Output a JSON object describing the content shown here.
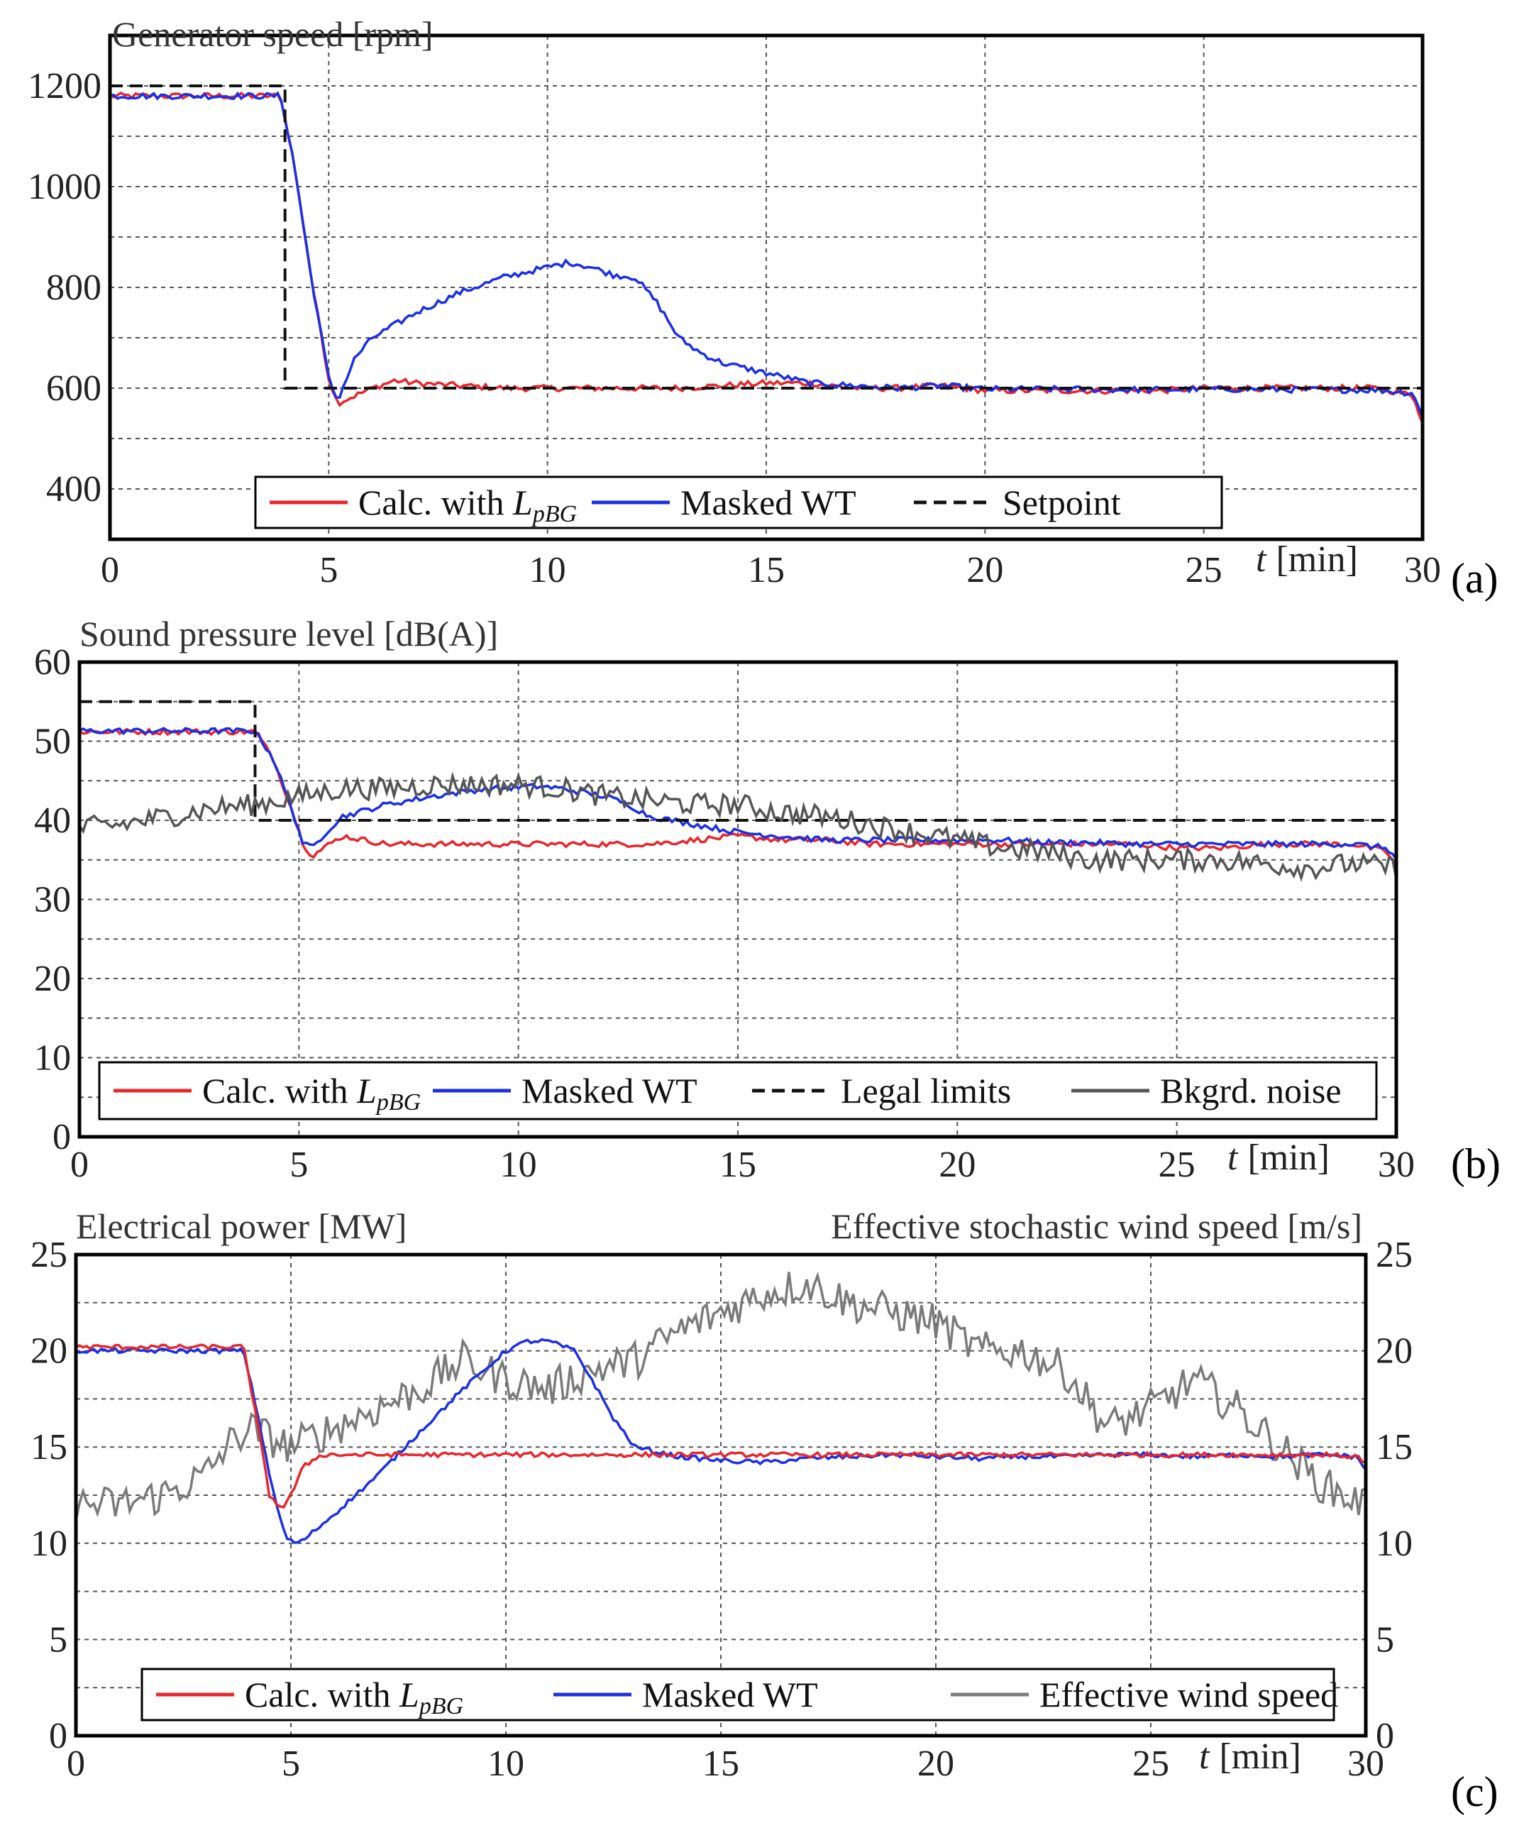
{
  "chart_data": [
    {
      "type": "line",
      "panel_label": "(a)",
      "title": "Generator speed [rpm]",
      "xlabel_var": "t",
      "xlabel_unit": "[min]",
      "xlim": [
        0,
        30
      ],
      "ylim": [
        300,
        1300
      ],
      "xticks": [
        "0",
        "5",
        "10",
        "15",
        "20",
        "25",
        "30"
      ],
      "yticks": [
        "400",
        "600",
        "800",
        "1000",
        "1200"
      ],
      "grid": true,
      "legend_position": "bottom",
      "colors": {
        "red": "#e8262b",
        "blue": "#1a2fe6",
        "black": "#111111",
        "gray": "#7a7a7a"
      },
      "series": [
        {
          "name": "Calc. with L_pBG",
          "legend_text": "Calc. with ",
          "legend_italic": "L",
          "legend_sub": "pBG",
          "color": "#e8262b",
          "style": "solid",
          "x": [
            0,
            1,
            2,
            3,
            3.9,
            4.2,
            4.6,
            5.0,
            5.2,
            5.6,
            6,
            6.5,
            7,
            8,
            9,
            10,
            11,
            12,
            13,
            14,
            15,
            16,
            17,
            18,
            19,
            20,
            21,
            22,
            23,
            24,
            25,
            26,
            27,
            28,
            29,
            29.8,
            30
          ],
          "y": [
            1180,
            1180,
            1180,
            1180,
            1180,
            1050,
            820,
            620,
            570,
            585,
            600,
            615,
            610,
            605,
            600,
            600,
            600,
            600,
            600,
            605,
            610,
            610,
            600,
            600,
            605,
            595,
            595,
            595,
            595,
            595,
            600,
            600,
            600,
            600,
            600,
            585,
            530
          ]
        },
        {
          "name": "Masked WT",
          "legend_text": "Masked WT",
          "color": "#1a2fe6",
          "style": "solid",
          "x": [
            0,
            1,
            2,
            3,
            3.9,
            4.2,
            4.6,
            5.0,
            5.2,
            5.6,
            6,
            7,
            8,
            9,
            10,
            10.5,
            11,
            11.5,
            12,
            12.5,
            13,
            13.5,
            14,
            14.5,
            15,
            16,
            17,
            18,
            19,
            20,
            21,
            22,
            23,
            24,
            25,
            26,
            27,
            28,
            29,
            29.8,
            30
          ],
          "y": [
            1180,
            1180,
            1180,
            1180,
            1180,
            1050,
            820,
            620,
            575,
            660,
            700,
            750,
            790,
            820,
            840,
            850,
            840,
            825,
            820,
            770,
            700,
            670,
            650,
            640,
            630,
            610,
            605,
            600,
            605,
            598,
            598,
            598,
            597,
            597,
            598,
            598,
            597,
            597,
            596,
            590,
            540
          ]
        },
        {
          "name": "Setpoint",
          "legend_text": "Setpoint",
          "color": "#111111",
          "style": "dashed",
          "x": [
            0,
            4,
            4,
            30
          ],
          "y": [
            1200,
            1200,
            600,
            600
          ]
        }
      ]
    },
    {
      "type": "line",
      "panel_label": "(b)",
      "title": "Sound pressure level [dB(A)]",
      "xlabel_var": "t",
      "xlabel_unit": "[min]",
      "xlim": [
        0,
        30
      ],
      "ylim": [
        0,
        60
      ],
      "xticks": [
        "0",
        "5",
        "10",
        "15",
        "20",
        "25",
        "30"
      ],
      "yticks": [
        "0",
        "10",
        "20",
        "30",
        "40",
        "50",
        "60"
      ],
      "grid": true,
      "legend_position": "bottom",
      "series": [
        {
          "name": "Calc. with L_pBG",
          "legend_text": "Calc. with ",
          "legend_italic": "L",
          "legend_sub": "pBG",
          "color": "#e8262b",
          "style": "solid",
          "x": [
            0,
            1,
            2,
            3,
            4.0,
            4.4,
            4.8,
            5.1,
            5.3,
            5.7,
            6,
            7,
            8,
            9,
            10,
            11,
            12,
            13,
            14,
            15,
            16,
            17,
            18,
            19,
            20,
            21,
            22,
            23,
            24,
            25,
            26,
            27,
            28,
            29,
            29.8,
            30
          ],
          "y": [
            51.2,
            51.2,
            51.2,
            51.2,
            51.2,
            48,
            42,
            37,
            35.5,
            37,
            38,
            37,
            37,
            37,
            37,
            37,
            37,
            37,
            37.5,
            38,
            37.5,
            37.5,
            37,
            37,
            37,
            37,
            37,
            37,
            37,
            36.5,
            36.5,
            37,
            37,
            37,
            36,
            34
          ]
        },
        {
          "name": "Masked WT",
          "legend_text": "Masked WT",
          "color": "#1a2fe6",
          "style": "solid",
          "x": [
            0,
            1,
            2,
            3,
            4.0,
            4.4,
            4.8,
            5.1,
            5.3,
            5.7,
            6,
            7,
            8,
            9,
            10,
            10.5,
            11,
            11.5,
            12,
            12.5,
            13,
            14,
            15,
            16,
            17,
            18,
            19,
            20,
            21,
            22,
            23,
            24,
            25,
            26,
            27,
            28,
            29,
            29.8,
            30
          ],
          "y": [
            51.3,
            51.3,
            51.3,
            51.3,
            51.3,
            48,
            42,
            37,
            36.5,
            39,
            40.5,
            42,
            43,
            43.8,
            44.2,
            44.3,
            44,
            43.5,
            43,
            42,
            40.5,
            39.5,
            38.5,
            38,
            37.5,
            37.5,
            37.5,
            37.5,
            37.5,
            37.2,
            37.2,
            37,
            37,
            37,
            37,
            37,
            37,
            36.5,
            35
          ]
        },
        {
          "name": "Legal limits",
          "legend_text": "Legal limits",
          "color": "#111111",
          "style": "dashed",
          "x": [
            0,
            4,
            4,
            30
          ],
          "y": [
            55,
            55,
            40,
            40
          ]
        },
        {
          "name": "Bkgrd. noise",
          "legend_text": "Bkgrd. noise",
          "color": "#555555",
          "style": "solid",
          "noise": 1.4,
          "x": [
            0,
            1,
            2,
            3,
            4,
            5,
            6,
            7,
            8,
            9,
            10,
            11,
            12,
            13,
            14,
            15,
            16,
            17,
            18,
            19,
            20,
            21,
            22,
            23,
            24,
            25,
            26,
            27,
            28,
            29,
            30
          ],
          "y": [
            39,
            39.5,
            40.5,
            41.5,
            42,
            43,
            44,
            44,
            44.5,
            44.5,
            44.5,
            44,
            43,
            42.5,
            42,
            42,
            41,
            40.5,
            39.5,
            38.5,
            37.5,
            36.5,
            36,
            35,
            35,
            35,
            35,
            34.5,
            34,
            34.5,
            34
          ]
        }
      ]
    },
    {
      "type": "line",
      "panel_label": "(c)",
      "title_left": "Electrical power [MW]",
      "title_right": "Effective stochastic wind speed [m/s]",
      "xlabel_var": "t",
      "xlabel_unit": "[min]",
      "xlim": [
        0,
        30
      ],
      "ylim": [
        0,
        25
      ],
      "xticks": [
        "0",
        "5",
        "10",
        "15",
        "20",
        "25",
        "30"
      ],
      "yticks": [
        "0",
        "5",
        "10",
        "15",
        "20",
        "25"
      ],
      "yticks_right": [
        "0",
        "5",
        "10",
        "15",
        "20",
        "25"
      ],
      "grid": true,
      "legend_position": "bottom",
      "series": [
        {
          "name": "Effective wind speed",
          "legend_text": "Effective wind speed",
          "color": "#7a7a7a",
          "style": "solid",
          "noise": 1.0,
          "x": [
            0,
            1,
            2,
            3,
            3.5,
            4,
            4.5,
            5,
            6,
            7,
            8,
            9,
            10,
            11,
            12,
            13,
            14,
            15,
            16,
            17,
            18,
            19,
            20,
            21,
            22,
            23,
            24,
            25,
            26,
            27,
            28,
            29,
            30
          ],
          "y": [
            12,
            12,
            12.5,
            13.5,
            15,
            16,
            15.5,
            15,
            16,
            17,
            18,
            19.5,
            18.5,
            18,
            19,
            19.5,
            21,
            22,
            23,
            23.5,
            22.5,
            22,
            21.5,
            20,
            20,
            19,
            16,
            17,
            18.5,
            17,
            15,
            13,
            12
          ]
        },
        {
          "name": "Masked WT",
          "legend_text": "Masked WT",
          "color": "#1a2fe6",
          "style": "solid",
          "noise": 0.12,
          "x": [
            0,
            1,
            2,
            3,
            3.9,
            4.2,
            4.6,
            4.9,
            5.2,
            6,
            7,
            8,
            9,
            10,
            10.5,
            11,
            11.6,
            12,
            12.5,
            13,
            14,
            15,
            16,
            17,
            18,
            19,
            20,
            21,
            22,
            23,
            24,
            25,
            26,
            27,
            28,
            29,
            29.8,
            30
          ],
          "y": [
            20,
            20,
            20,
            20,
            20,
            17,
            12.5,
            10.2,
            10,
            11.5,
            13.5,
            15.8,
            18,
            20,
            20.5,
            20.5,
            20,
            18.5,
            16.5,
            15,
            14.5,
            14.3,
            14.2,
            14.4,
            14.5,
            14.6,
            14.5,
            14.4,
            14.5,
            14.5,
            14.6,
            14.6,
            14.5,
            14.6,
            14.5,
            14.6,
            14.5,
            13.8
          ]
        },
        {
          "name": "Calc. with L_pBG",
          "legend_text": "Calc. with ",
          "legend_italic": "L",
          "legend_sub": "pBG",
          "color": "#e8262b",
          "style": "solid",
          "noise": 0.12,
          "x": [
            0,
            1,
            2,
            3,
            3.9,
            4.2,
            4.5,
            4.8,
            5.0,
            5.3,
            5.7,
            6,
            7,
            8,
            9,
            10,
            11,
            12,
            13,
            14,
            15,
            16,
            17,
            18,
            19,
            20,
            21,
            22,
            23,
            24,
            25,
            26,
            27,
            28,
            29,
            29.8,
            30
          ],
          "y": [
            20.2,
            20.2,
            20.2,
            20.2,
            20.2,
            16.5,
            12.5,
            11.8,
            12.5,
            14,
            14.6,
            14.6,
            14.6,
            14.6,
            14.6,
            14.6,
            14.6,
            14.6,
            14.6,
            14.6,
            14.6,
            14.6,
            14.6,
            14.6,
            14.6,
            14.6,
            14.6,
            14.6,
            14.6,
            14.6,
            14.6,
            14.6,
            14.6,
            14.6,
            14.6,
            14.5,
            14.2
          ]
        }
      ]
    }
  ]
}
